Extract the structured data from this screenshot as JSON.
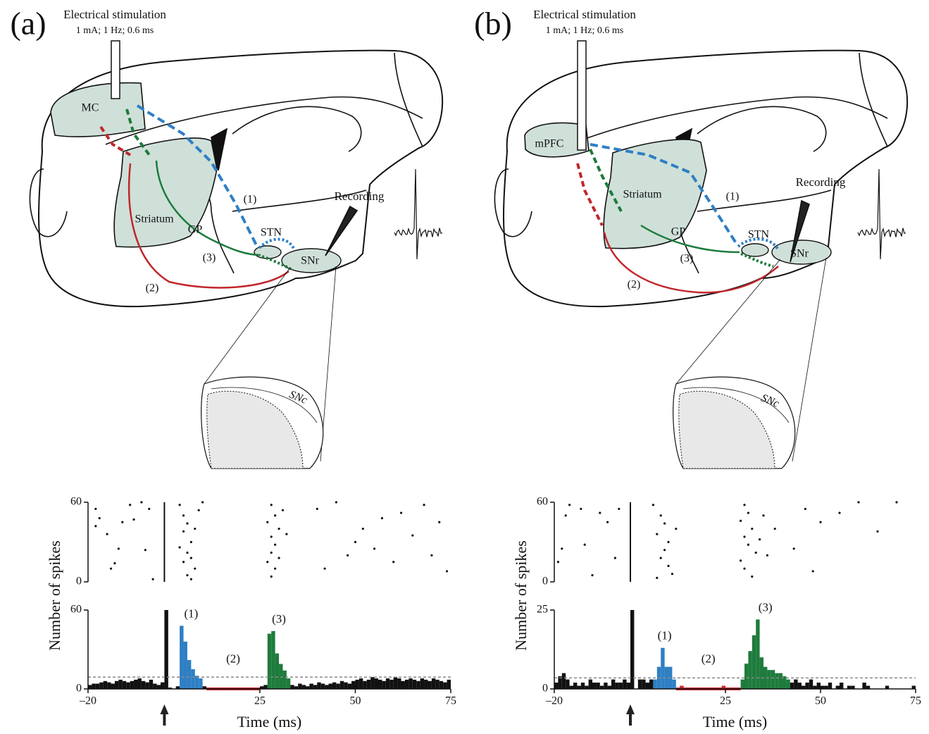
{
  "diagrams": [
    {
      "label": "(a)",
      "stimulation": "Electrical stimulation",
      "parameters": "1 mA; 1 Hz; 0.6 ms",
      "region": "MC",
      "striatum": "Striatum",
      "gp": "GP",
      "stn": "STN",
      "snr": "SNr",
      "snc": "SNc",
      "recording": "Recording",
      "pathways": [
        "(1)",
        "(2)",
        "(3)"
      ]
    },
    {
      "label": "(b)",
      "stimulation": "Electrical stimulation",
      "parameters": "1 mA; 1 Hz; 0.6 ms",
      "region": "mPFC",
      "striatum": "Striatum",
      "gp": "GP",
      "stn": "STN",
      "snr": "SNr",
      "snc": "SNc",
      "recording": "Recording",
      "pathways": [
        "(1)",
        "(2)",
        "(3)"
      ]
    }
  ],
  "chart_data": [
    {
      "type": "scatter",
      "color": "#111111",
      "xlim": [
        -20,
        75
      ],
      "ylim": [
        0,
        60
      ],
      "yticks": [
        0,
        60
      ],
      "stimulus_time": 0,
      "x": [
        -18,
        -17,
        -18,
        -15,
        -14,
        -13,
        -12,
        -11,
        -9,
        -8,
        -6,
        -5,
        -3,
        -4,
        4,
        5,
        6,
        5,
        7,
        6,
        5,
        8,
        6,
        7,
        9,
        8,
        4,
        7,
        10,
        28,
        29,
        27,
        30,
        28,
        29,
        28,
        27,
        29,
        28,
        31,
        30,
        32,
        40,
        45,
        42,
        48,
        50,
        52,
        55,
        57,
        60,
        62,
        65,
        68,
        70,
        72,
        74
      ],
      "y": [
        55,
        48,
        42,
        36,
        10,
        14,
        25,
        45,
        58,
        47,
        60,
        24,
        2,
        55,
        58,
        50,
        44,
        38,
        30,
        22,
        15,
        10,
        5,
        2,
        54,
        40,
        26,
        18,
        60,
        58,
        50,
        45,
        40,
        34,
        28,
        22,
        15,
        10,
        4,
        54,
        18,
        36,
        55,
        60,
        10,
        20,
        30,
        40,
        25,
        48,
        15,
        52,
        35,
        58,
        20,
        45,
        8
      ]
    },
    {
      "type": "histogram",
      "color": "#111111",
      "ylabel": "Number of spikes",
      "xlabel": "Time (ms)",
      "xlim": [
        -20,
        75
      ],
      "xticks": [
        {
          "value": -20,
          "label": "–20"
        },
        25,
        50,
        75
      ],
      "ylim": [
        0,
        60
      ],
      "yticks": [
        0,
        60
      ],
      "threshold": 9,
      "stimulus_time": 0,
      "bins": [
        -20,
        -19,
        -18,
        -17,
        -16,
        -15,
        -14,
        -13,
        -12,
        -11,
        -10,
        -9,
        -8,
        -7,
        -6,
        -5,
        -4,
        -3,
        -2,
        -1,
        0,
        1,
        2,
        3,
        4,
        5,
        6,
        7,
        8,
        9,
        10,
        11,
        12,
        13,
        14,
        15,
        16,
        17,
        18,
        19,
        20,
        21,
        22,
        23,
        24,
        25,
        26,
        27,
        28,
        29,
        30,
        31,
        32,
        33,
        34,
        35,
        36,
        37,
        38,
        39,
        40,
        41,
        42,
        43,
        44,
        45,
        46,
        47,
        48,
        49,
        50,
        51,
        52,
        53,
        54,
        55,
        56,
        57,
        58,
        59,
        60,
        61,
        62,
        63,
        64,
        65,
        66,
        67,
        68,
        69,
        70,
        71,
        72,
        73,
        74,
        75
      ],
      "values": [
        3,
        4,
        4,
        5,
        6,
        5,
        4,
        6,
        7,
        6,
        5,
        6,
        7,
        8,
        6,
        5,
        7,
        4,
        3,
        5,
        60,
        1,
        0,
        2,
        48,
        36,
        22,
        15,
        10,
        8,
        2,
        1,
        0,
        0,
        1,
        0,
        0,
        0,
        0,
        0,
        1,
        0,
        0,
        0,
        0,
        2,
        3,
        42,
        44,
        27,
        19,
        14,
        8,
        3,
        2,
        4,
        3,
        2,
        4,
        3,
        5,
        4,
        3,
        4,
        5,
        4,
        6,
        5,
        4,
        6,
        7,
        8,
        6,
        7,
        9,
        8,
        7,
        6,
        8,
        7,
        9,
        8,
        6,
        7,
        8,
        7,
        6,
        8,
        7,
        6,
        8,
        7,
        6,
        5,
        7
      ],
      "segments": [
        {
          "label": "(1)",
          "color": "#2f7fc4",
          "style": "bars",
          "from": 4,
          "to": 10
        },
        {
          "label": "(2)",
          "color": "#c0272d",
          "style": "line",
          "from": 11,
          "to": 25
        },
        {
          "label": "(3)",
          "color": "#1e7b3c",
          "style": "bars",
          "from": 27,
          "to": 33
        }
      ]
    },
    {
      "type": "scatter",
      "color": "#111111",
      "xlim": [
        -20,
        75
      ],
      "ylim": [
        0,
        60
      ],
      "yticks": [
        0,
        60
      ],
      "stimulus_time": 0,
      "x": [
        -19,
        -18,
        -17,
        -16,
        -13,
        -12,
        -10,
        -8,
        -6,
        -3,
        -4,
        6,
        8,
        9,
        7,
        10,
        9,
        8,
        10,
        11,
        7,
        12,
        30,
        31,
        29,
        32,
        30,
        31,
        33,
        29,
        30,
        32,
        35,
        36,
        34,
        38,
        43,
        46,
        50,
        55,
        60,
        65,
        70,
        48
      ],
      "y": [
        15,
        25,
        50,
        58,
        55,
        28,
        5,
        52,
        45,
        55,
        18,
        58,
        50,
        44,
        36,
        30,
        24,
        18,
        12,
        6,
        3,
        40,
        58,
        52,
        46,
        40,
        34,
        28,
        22,
        16,
        10,
        4,
        50,
        20,
        32,
        40,
        25,
        55,
        45,
        52,
        60,
        38,
        60,
        8
      ]
    },
    {
      "type": "histogram",
      "color": "#111111",
      "ylabel": "Number of spikes",
      "xlabel": "Time (ms)",
      "xlim": [
        -20,
        75
      ],
      "xticks": [
        {
          "value": -20,
          "label": "–20"
        },
        25,
        50,
        75
      ],
      "ylim": [
        0,
        25
      ],
      "yticks": [
        0,
        25
      ],
      "threshold": 3.5,
      "stimulus_time": 0,
      "bins": [
        -20,
        -19,
        -18,
        -17,
        -16,
        -15,
        -14,
        -13,
        -12,
        -11,
        -10,
        -9,
        -8,
        -7,
        -6,
        -5,
        -4,
        -3,
        -2,
        -1,
        0,
        1,
        2,
        3,
        4,
        5,
        6,
        7,
        8,
        9,
        10,
        11,
        12,
        13,
        14,
        15,
        16,
        17,
        18,
        19,
        20,
        21,
        22,
        23,
        24,
        25,
        26,
        27,
        28,
        29,
        30,
        31,
        32,
        33,
        34,
        35,
        36,
        37,
        38,
        39,
        40,
        41,
        42,
        43,
        44,
        45,
        46,
        47,
        48,
        49,
        50,
        51,
        52,
        53,
        54,
        55,
        56,
        57,
        58,
        59,
        60,
        61,
        62,
        63,
        64,
        65,
        66,
        67,
        68,
        69,
        70,
        71,
        72,
        73,
        74,
        75
      ],
      "values": [
        2,
        4,
        5,
        3,
        1,
        2,
        1,
        2,
        1,
        3,
        2,
        2,
        1,
        2,
        1,
        3,
        2,
        2,
        3,
        2,
        25,
        0,
        3,
        3,
        2,
        3,
        3,
        7,
        13,
        7,
        7,
        3,
        0,
        1,
        0,
        0,
        0,
        0,
        0,
        0,
        0,
        0,
        0,
        0,
        1,
        0,
        0,
        0,
        0,
        3,
        8,
        12,
        17,
        22,
        10,
        7,
        6,
        6,
        5,
        5,
        4,
        3,
        2,
        3,
        2,
        1,
        2,
        3,
        1,
        2,
        1,
        1,
        2,
        0,
        1,
        2,
        0,
        1,
        1,
        0,
        0,
        2,
        1,
        0,
        0,
        0,
        0,
        1,
        0,
        0,
        0,
        0,
        0,
        0,
        1
      ],
      "segments": [
        {
          "label": "(1)",
          "color": "#2f7fc4",
          "style": "bars",
          "from": 6,
          "to": 12
        },
        {
          "label": "(2)",
          "color": "#c0272d",
          "style": "line",
          "from": 12,
          "to": 29
        },
        {
          "label": "(3)",
          "color": "#1e7b3c",
          "style": "bars",
          "from": 29,
          "to": 42
        }
      ]
    }
  ]
}
